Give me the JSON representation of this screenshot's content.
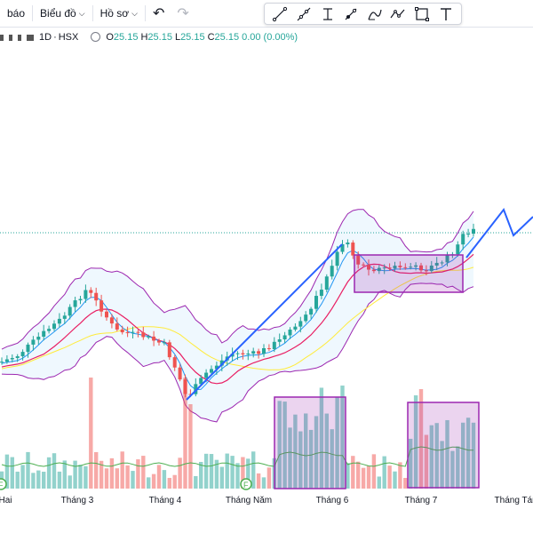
{
  "toolbar": {
    "alerts_label": "báo",
    "chart_menu_label": "Biểu đồ",
    "profile_menu_label": "Hồ sơ",
    "undo_icon": "undo-icon",
    "redo_icon": "redo-icon"
  },
  "drawing_tools": [
    {
      "name": "trend-line-icon"
    },
    {
      "name": "ray-line-icon"
    },
    {
      "name": "price-range-icon"
    },
    {
      "name": "pen-brush-icon"
    },
    {
      "name": "curve-icon"
    },
    {
      "name": "path-icon"
    },
    {
      "name": "rectangle-icon"
    },
    {
      "name": "text-icon"
    }
  ],
  "legend": {
    "timeframe": "1D",
    "exchange": "HSX",
    "o_label": "O",
    "o_value": "25.15",
    "h_label": "H",
    "h_value": "25.15",
    "l_label": "L",
    "l_value": "25.15",
    "c_label": "C",
    "c_value": "25.15",
    "change": "0.00 (0.00%)"
  },
  "xaxis": {
    "labels": [
      "Hai",
      "Tháng 3",
      "Tháng 4",
      "Tháng Năm",
      "Tháng 6",
      "Tháng 7",
      "Tháng Tám"
    ]
  },
  "colors": {
    "up": "#26a69a",
    "down": "#ef5350",
    "bollinger": "#9c27b0",
    "ma_fast": "#2196f3",
    "ma_mid": "#e91e63",
    "ma_slow": "#ffeb3b",
    "trend": "#2962ff",
    "box": "#9c27b0",
    "vol_ma": "#4caf50"
  },
  "event_markers": [
    "F",
    "F"
  ]
}
